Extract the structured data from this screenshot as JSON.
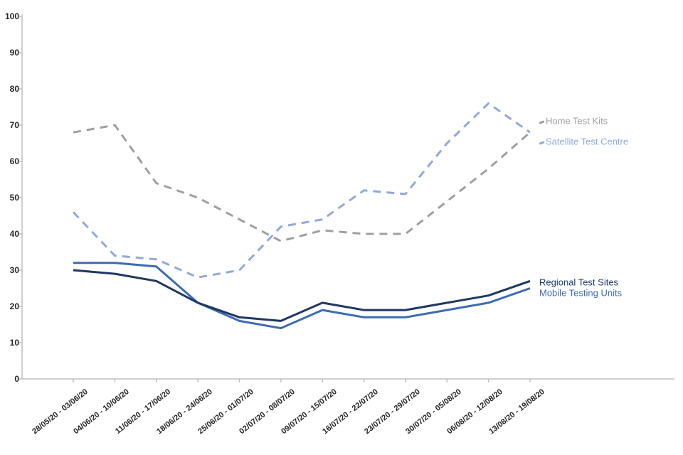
{
  "chart_data": {
    "type": "line",
    "title": "",
    "categories": [
      "28/05/20 - 03/06/20",
      "04/06/20 - 10/06/20",
      "11/06/20 - 17/06/20",
      "18/06/20 - 24/06/20",
      "25/06/20 - 01/07/20",
      "02/07/20 - 08/07/20",
      "09/07/20 - 15/07/20",
      "16/07/20 - 22/07/20",
      "23/07/20 - 29/07/20",
      "30/07/20 - 05/08/20",
      "06/08/20 - 12/08/20",
      "13/08/20 - 19/08/20"
    ],
    "series": [
      {
        "name": "Home Test Kits",
        "color": "#a0a0a0",
        "line_style": "dashed",
        "values": [
          68,
          70,
          54,
          50,
          44,
          38,
          41,
          40,
          40,
          49,
          58,
          68
        ]
      },
      {
        "name": "Satellite Test Centre",
        "color": "#8faadc",
        "line_style": "dashed",
        "values": [
          46,
          34,
          33,
          28,
          30,
          42,
          44,
          52,
          51,
          65,
          76,
          68
        ]
      },
      {
        "name": "Mobile Testing Units",
        "color": "#3d6cb3",
        "line_style": "solid",
        "values": [
          32,
          32,
          31,
          21,
          16,
          14,
          19,
          17,
          17,
          19,
          21,
          25
        ]
      },
      {
        "name": "Regional Test Sites",
        "color": "#1f3864",
        "line_style": "solid",
        "values": [
          30,
          29,
          27,
          21,
          17,
          16,
          21,
          19,
          19,
          21,
          23,
          27
        ]
      }
    ],
    "y_axis": {
      "min": 0,
      "max": 100,
      "step": 10,
      "tick_labels": [
        "0",
        "10",
        "20",
        "30",
        "40",
        "50",
        "60",
        "70",
        "80",
        "90",
        "100"
      ]
    },
    "x_axis": {
      "tick_marks": true,
      "label_rotation_deg": -38
    },
    "grid": false,
    "legend_position": "end-of-line labels (right of last data points)",
    "axis_color": "#c0c0c0"
  }
}
